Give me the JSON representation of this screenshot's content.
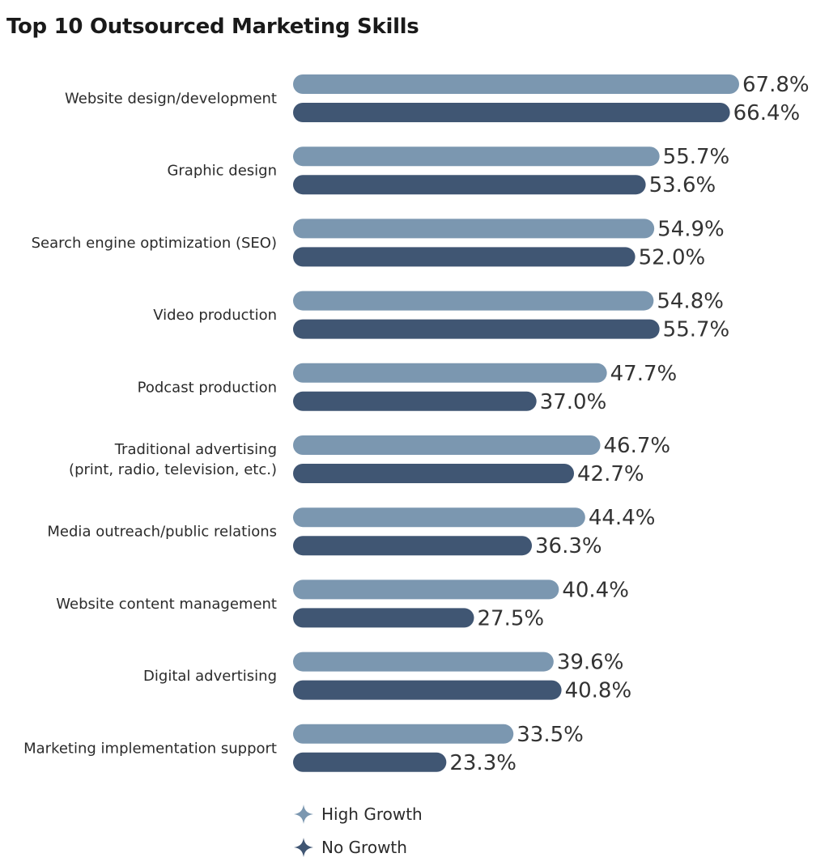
{
  "chart_data": {
    "type": "bar",
    "orientation": "horizontal",
    "title": "Top 10 Outsourced Marketing Skills",
    "categories": [
      [
        "Website design/development"
      ],
      [
        "Graphic design"
      ],
      [
        "Search engine optimization (SEO)"
      ],
      [
        "Video production"
      ],
      [
        "Podcast production"
      ],
      [
        "Traditional advertising",
        "(print, radio, television, etc.)"
      ],
      [
        "Media outreach/public relations"
      ],
      [
        "Website content management"
      ],
      [
        "Digital advertising"
      ],
      [
        "Marketing implementation support"
      ]
    ],
    "series": [
      {
        "name": "High Growth",
        "color": "#7b97b0",
        "values": [
          67.8,
          55.7,
          54.9,
          54.8,
          47.7,
          46.7,
          44.4,
          40.4,
          39.6,
          33.5
        ],
        "labels": [
          "67.8%",
          "55.7%",
          "54.9%",
          "54.8%",
          "47.7%",
          "46.7%",
          "44.4%",
          "40.4%",
          "39.6%",
          "33.5%"
        ]
      },
      {
        "name": "No Growth",
        "color": "#405673",
        "values": [
          66.4,
          53.6,
          52.0,
          55.7,
          37.0,
          42.7,
          36.3,
          27.5,
          40.8,
          23.3
        ],
        "labels": [
          "66.4%",
          "53.6%",
          "52.0%",
          "55.7%",
          "37.0%",
          "42.7%",
          "36.3%",
          "27.5%",
          "40.8%",
          "23.3%"
        ]
      }
    ],
    "xlim": [
      0,
      67.8
    ],
    "grid": false,
    "legend_position": "bottom",
    "legend_icon": "four-point-star-icon"
  }
}
